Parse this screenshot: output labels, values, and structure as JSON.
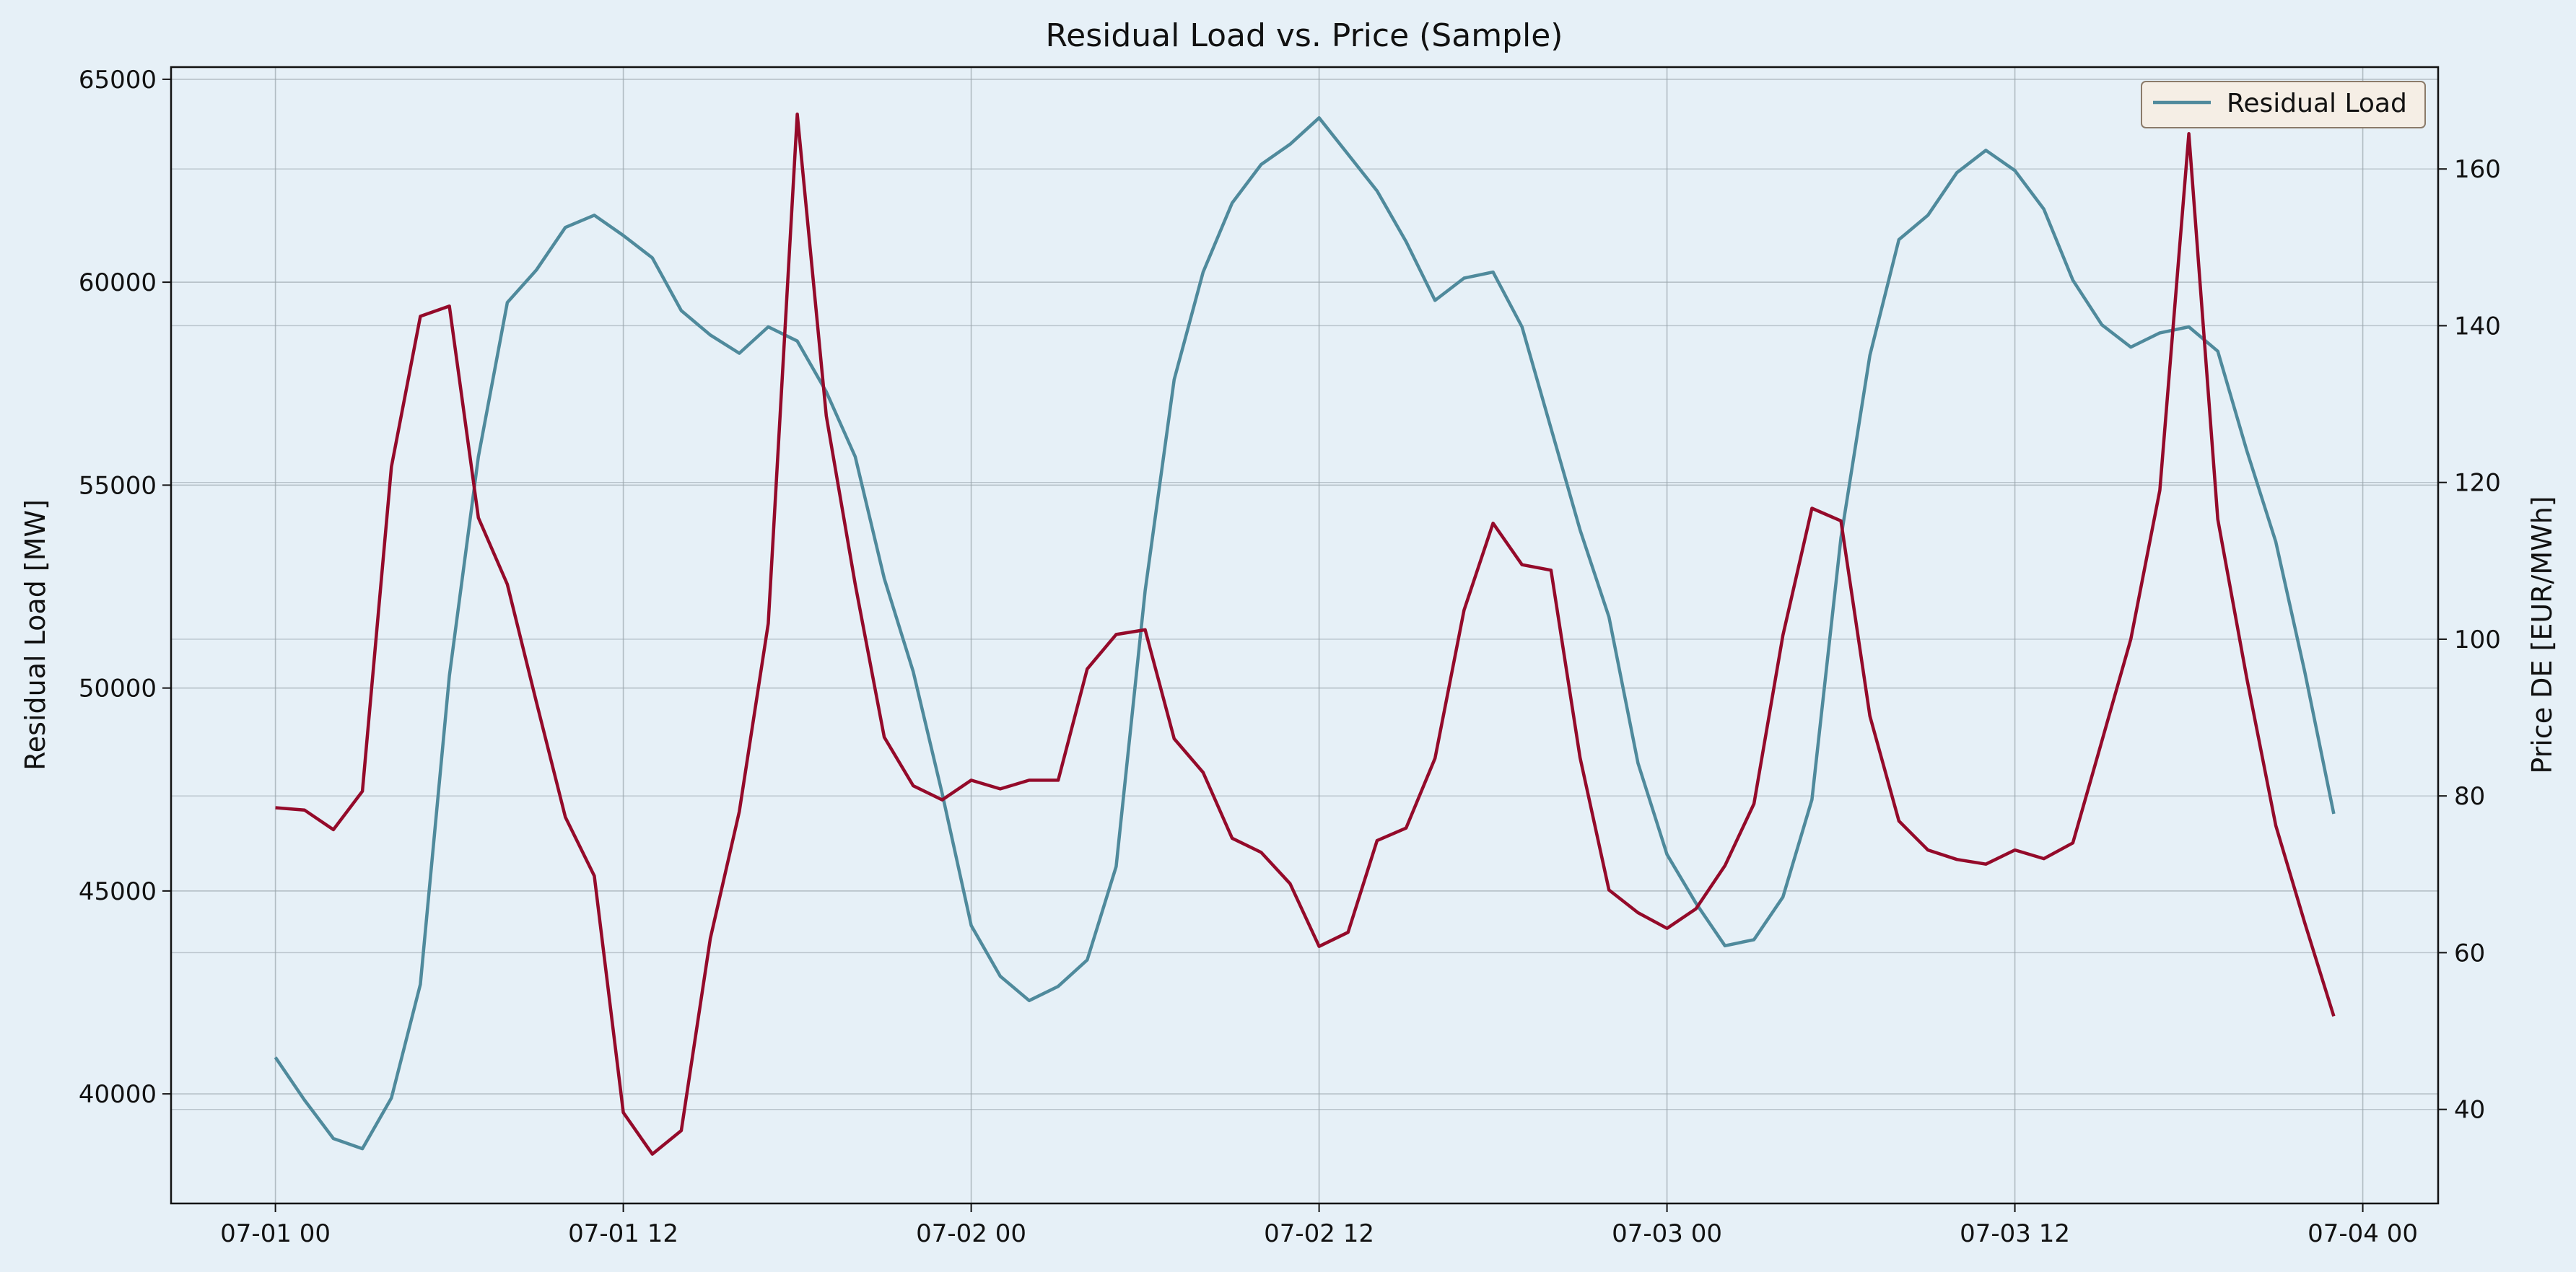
{
  "chart_data": {
    "type": "line",
    "title": "Residual Load vs. Price (Sample)",
    "xlabel": "",
    "x_tick_labels": [
      "07-01 00",
      "07-01 12",
      "07-02 00",
      "07-02 12",
      "07-03 00",
      "07-03 12",
      "07-04 00"
    ],
    "x_ticks_hours": [
      0,
      12,
      24,
      36,
      48,
      60,
      72
    ],
    "xlim_hours": [
      -3.6,
      74.6
    ],
    "left_axis": {
      "label": "Residual Load [MW]",
      "ylim": [
        37300,
        65300
      ],
      "ticks": [
        40000,
        45000,
        50000,
        55000,
        60000,
        65000
      ],
      "tick_labels": [
        "40000",
        "45000",
        "50000",
        "55000",
        "60000",
        "65000"
      ]
    },
    "right_axis": {
      "label": "Price DE [EUR/MWh]",
      "ylim": [
        28,
        173
      ],
      "ticks": [
        40,
        60,
        80,
        100,
        120,
        140,
        160
      ],
      "tick_labels": [
        "40",
        "60",
        "80",
        "100",
        "120",
        "140",
        "160"
      ]
    },
    "grid": true,
    "legend": {
      "placement": "top-right",
      "entries": [
        "Residual Load"
      ]
    },
    "colors": {
      "background": "#e6f0f7",
      "residual_load": "#4f8a9c",
      "price": "#940a2a",
      "grid": "#9aa5ad",
      "legend_bg": "#f5eee5",
      "legend_border": "#8b7b6a"
    },
    "series": [
      {
        "name": "Residual Load",
        "axis": "left",
        "x_hours_start": 0,
        "x_hours_step": 1,
        "values": [
          40900,
          39850,
          38900,
          38650,
          39900,
          42700,
          50300,
          55700,
          59500,
          60300,
          61350,
          61650,
          61150,
          60600,
          59300,
          58700,
          58250,
          58900,
          58550,
          57300,
          55700,
          52700,
          50400,
          47400,
          44150,
          42900,
          42300,
          42650,
          43300,
          45600,
          52400,
          57600,
          60250,
          61950,
          62900,
          63400,
          64050,
          63150,
          62250,
          61000,
          59550,
          60100,
          60250,
          58900,
          56400,
          53900,
          51750,
          48150,
          45900,
          44700,
          43650,
          43800,
          44850,
          47250,
          53700,
          58200,
          61050,
          61650,
          62700,
          63250,
          62750,
          61800,
          60050,
          58950,
          58400,
          58750,
          58900,
          58300,
          55850,
          53600,
          50400,
          46900
        ]
      },
      {
        "name": "",
        "axis": "right",
        "x_hours_start": 0,
        "x_hours_step": 1,
        "values": [
          78.5,
          78.2,
          75.7,
          80.6,
          122,
          141.2,
          142.5,
          115.5,
          107,
          92,
          77.3,
          69.8,
          39.6,
          34.3,
          37.3,
          61.8,
          78,
          102,
          167,
          128.5,
          107,
          87.5,
          81.3,
          79.5,
          82,
          80.9,
          82,
          82,
          96.2,
          100.6,
          101.2,
          87.3,
          83,
          74.6,
          72.8,
          68.8,
          60.8,
          62.6,
          74.3,
          75.9,
          84.8,
          103.7,
          114.8,
          109.5,
          108.8,
          84.9,
          68,
          65.1,
          63.1,
          65.6,
          71.1,
          79,
          100.5,
          116.7,
          115.1,
          90.2,
          76.8,
          73.1,
          71.9,
          71.3,
          73.1,
          72,
          74,
          87,
          100,
          119,
          164.5,
          115.3,
          95,
          76.2,
          63.8,
          51.9
        ]
      }
    ]
  }
}
